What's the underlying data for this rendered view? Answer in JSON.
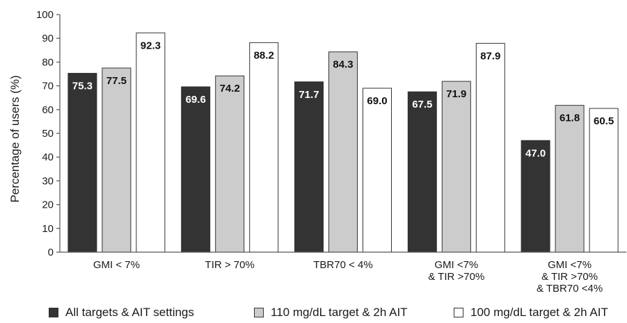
{
  "chart_data": {
    "type": "bar",
    "ylabel": "Percentage of users (%)",
    "ylim": [
      0,
      100
    ],
    "yticks": [
      0,
      10,
      20,
      30,
      40,
      50,
      60,
      70,
      80,
      90,
      100
    ],
    "grid": false,
    "legend_position": "bottom",
    "categories": [
      [
        "GMI < 7%"
      ],
      [
        "TIR > 70%"
      ],
      [
        "TBR70 < 4%"
      ],
      [
        "GMI <7%",
        "& TIR >70%"
      ],
      [
        "GMI <7%",
        "& TIR >70%",
        "& TBR70 <4%"
      ]
    ],
    "series": [
      {
        "name": "All targets & AIT settings",
        "color": "#333333",
        "label_color": "#ffffff",
        "values": [
          75.3,
          69.6,
          71.7,
          67.5,
          47.0
        ],
        "labels": [
          "75.3",
          "69.6",
          "71.7",
          "67.5",
          "47.0"
        ]
      },
      {
        "name": "110 mg/dL target & 2h AIT",
        "color": "#cccccc",
        "label_color": "#111111",
        "values": [
          77.5,
          74.2,
          84.3,
          71.9,
          61.8
        ],
        "labels": [
          "77.5",
          "74.2",
          "84.3",
          "71.9",
          "61.8"
        ]
      },
      {
        "name": "100 mg/dL target & 2h AIT",
        "color": "#ffffff",
        "label_color": "#111111",
        "values": [
          92.3,
          88.2,
          69.0,
          87.9,
          60.5
        ],
        "labels": [
          "92.3",
          "88.2",
          "69.0",
          "87.9",
          "60.5"
        ]
      }
    ]
  }
}
